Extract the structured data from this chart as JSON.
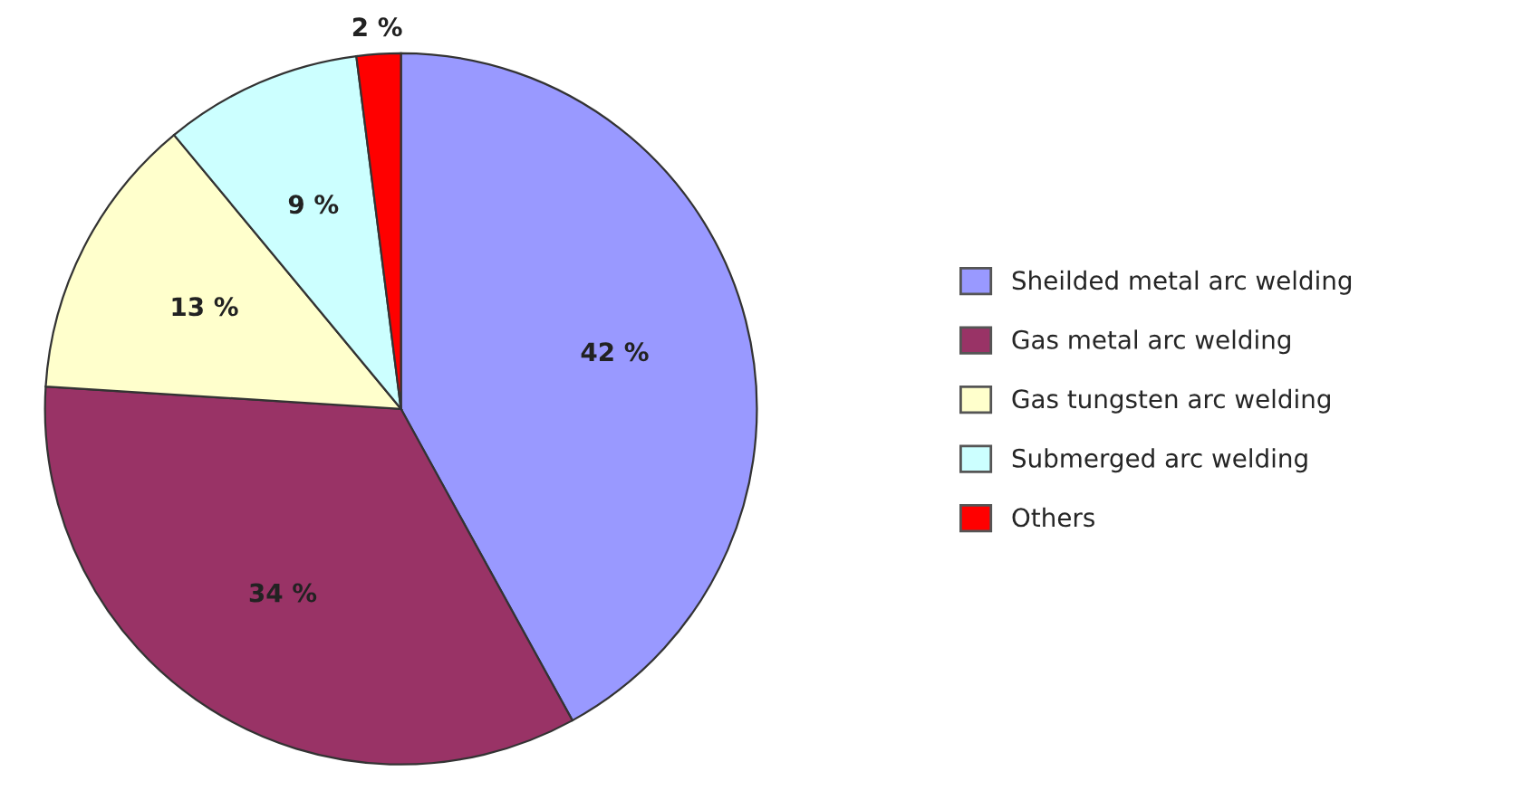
{
  "chart_data": {
    "type": "pie",
    "categories": [
      "Sheilded metal arc welding",
      "Gas metal arc welding",
      "Gas tungsten arc welding",
      "Submerged arc welding",
      "Others"
    ],
    "values": [
      42,
      34,
      13,
      9,
      2
    ],
    "colors": [
      "#9999ff",
      "#993366",
      "#ffffcc",
      "#ccffff",
      "#ff0000"
    ],
    "value_labels": [
      "42 %",
      "34 %",
      "13 %",
      "9 %",
      "2 %"
    ],
    "legend": "right"
  }
}
